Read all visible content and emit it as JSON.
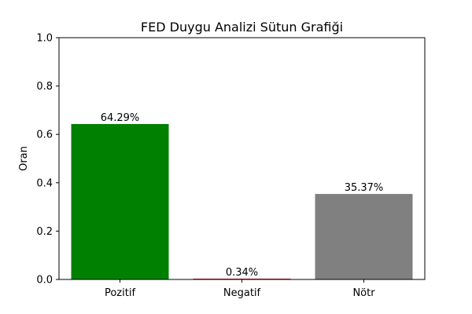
{
  "chart_data": {
    "type": "bar",
    "title": "FED Duygu Analizi Sütun Grafiği",
    "xlabel": "",
    "ylabel": "Oran",
    "categories": [
      "Pozitif",
      "Negatif",
      "Nötr"
    ],
    "values": [
      0.6429,
      0.0034,
      0.3537
    ],
    "value_labels": [
      "64.29%",
      "0.34%",
      "35.37%"
    ],
    "colors": [
      "#008000",
      "#ff0000",
      "#808080"
    ],
    "ylim": [
      0,
      1.0
    ],
    "yticks": [
      0.0,
      0.2,
      0.4,
      0.6,
      0.8,
      1.0
    ],
    "ytick_labels": [
      "0.0",
      "0.2",
      "0.4",
      "0.6",
      "0.8",
      "1.0"
    ],
    "grid": false,
    "legend": "none"
  }
}
